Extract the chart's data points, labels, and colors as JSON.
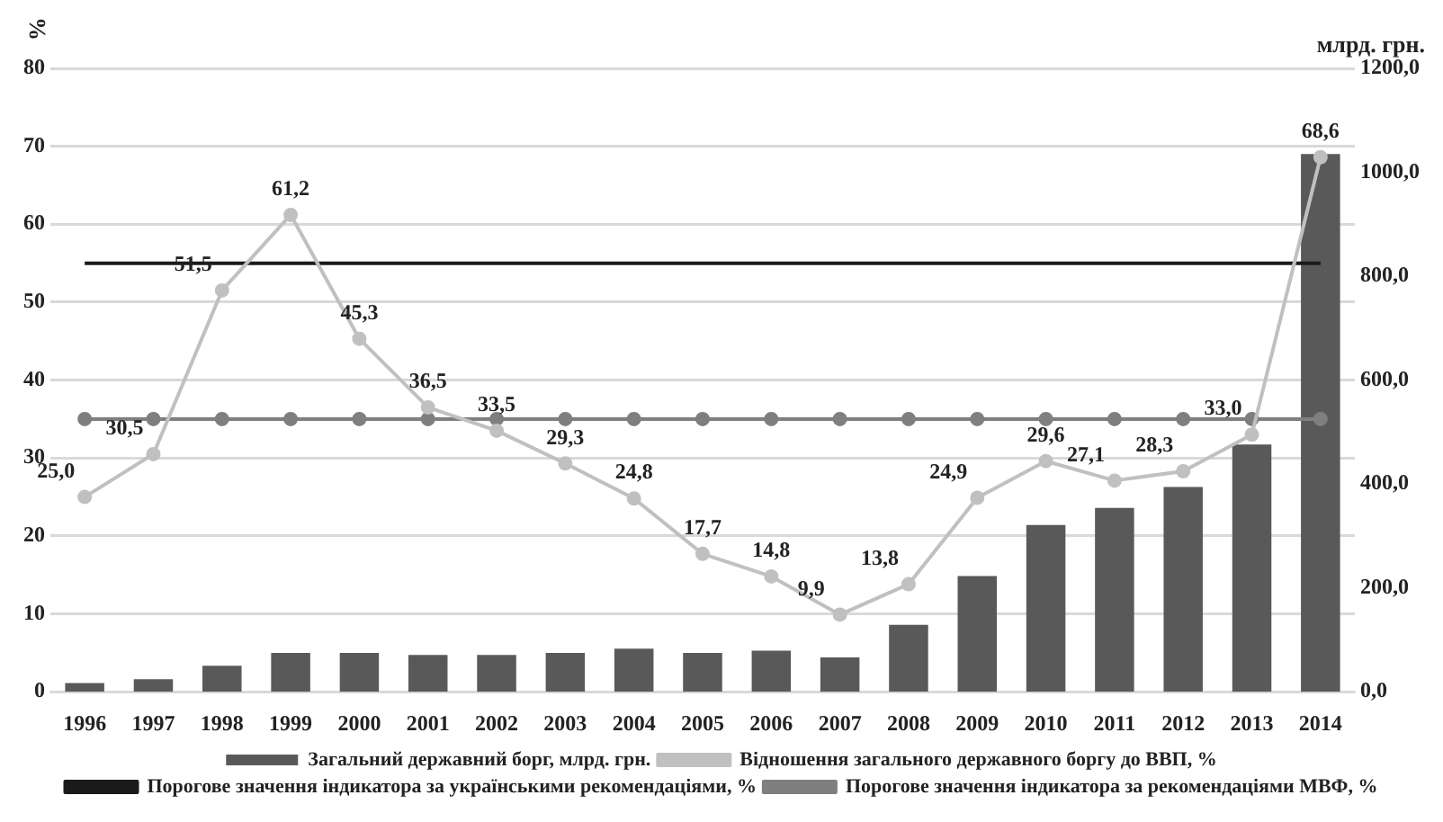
{
  "chart_data": {
    "type": "bar",
    "ylabel": "%",
    "y2label": "млрд. грн.",
    "categories": [
      "1996",
      "1997",
      "1998",
      "1999",
      "2000",
      "2001",
      "2002",
      "2003",
      "2004",
      "2005",
      "2006",
      "2007",
      "2008",
      "2009",
      "2010",
      "2011",
      "2012",
      "2013",
      "2014"
    ],
    "series": [
      {
        "name": "Загальний державний борг, млрд. грн.",
        "axis": "y2",
        "color": "#595959",
        "values": [
          17,
          24,
          50,
          75,
          75,
          71,
          71,
          75,
          83,
          75,
          79,
          66,
          129,
          223,
          321,
          354,
          394,
          476,
          1035
        ]
      },
      {
        "name": "Відношення загального державного боргу до ВВП, %",
        "type": "line",
        "axis": "y",
        "color": "#c0c0c0",
        "marker": "circle",
        "values": [
          25.0,
          30.5,
          51.5,
          61.2,
          45.3,
          36.5,
          33.5,
          29.3,
          24.8,
          17.7,
          14.8,
          9.9,
          13.8,
          24.9,
          29.6,
          27.1,
          28.3,
          33.0,
          68.6
        ],
        "value_labels": [
          "25,0",
          "30,5",
          "51,5",
          "61,2",
          "45,3",
          "36,5",
          "33,5",
          "29,3",
          "24,8",
          "17,7",
          "14,8",
          "9,9",
          "13,8",
          "24,9",
          "29,6",
          "27,1",
          "28,3",
          "33,0",
          "68,6"
        ]
      },
      {
        "name": "Порогове значення індикатора за українськими рекомендаціями, %",
        "type": "line",
        "axis": "y",
        "color": "#1a1a1a",
        "marker": "none",
        "values": [
          55,
          55,
          55,
          55,
          55,
          55,
          55,
          55,
          55,
          55,
          55,
          55,
          55,
          55,
          55,
          55,
          55,
          55,
          55
        ]
      },
      {
        "name": "Порогове значення індикатора за рекомендаціями МВФ, %",
        "type": "line",
        "axis": "y",
        "color": "#7f7f7f",
        "marker": "circle",
        "values": [
          35,
          35,
          35,
          35,
          35,
          35,
          35,
          35,
          35,
          35,
          35,
          35,
          35,
          35,
          35,
          35,
          35,
          35,
          35
        ]
      }
    ],
    "ylim": [
      0,
      80
    ],
    "yticks": [
      0,
      10,
      20,
      30,
      40,
      50,
      60,
      70,
      80
    ],
    "y2lim": [
      0,
      1200
    ],
    "y2ticks": [
      {
        "value": 0,
        "label": "0,0"
      },
      {
        "value": 200,
        "label": "200,0"
      },
      {
        "value": 400,
        "label": "400,0"
      },
      {
        "value": 600,
        "label": "600,0"
      },
      {
        "value": 800,
        "label": "800,0"
      },
      {
        "value": 1000,
        "label": "1000,0"
      },
      {
        "value": 1200,
        "label": "1200,0"
      }
    ],
    "grid": "y",
    "legend": "bottom"
  }
}
